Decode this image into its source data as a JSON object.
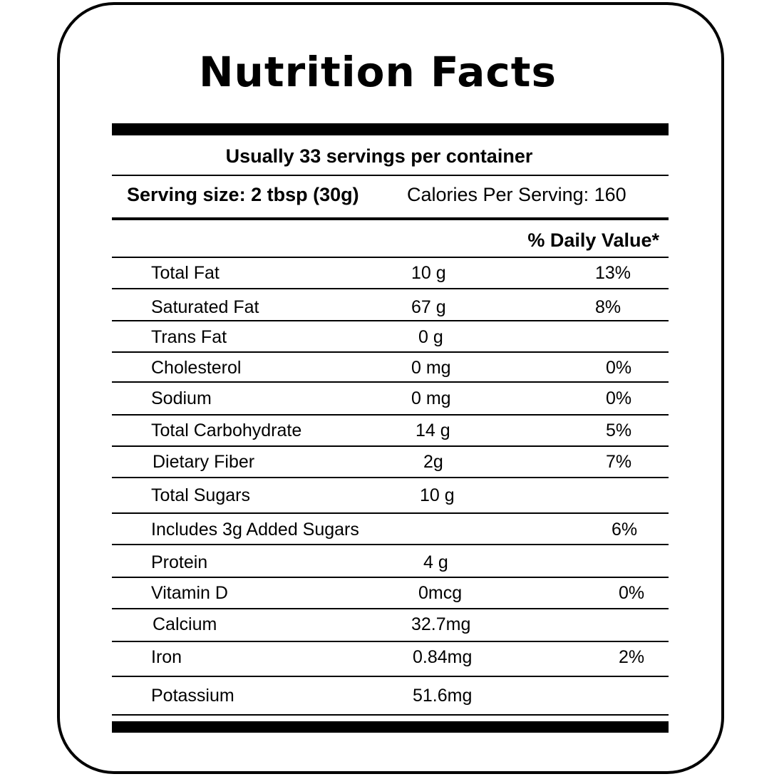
{
  "label": {
    "title": "Nutrition Facts",
    "servings_per_container": "Usually 33 servings per container",
    "serving_size": "Serving size: 2 tbsp (30g)",
    "calories": "Calories Per Serving: 160",
    "daily_value_header": "% Daily Value*",
    "nutrients": [
      {
        "name": "Total Fat",
        "amount": "10 g",
        "dv": "13%"
      },
      {
        "name": "Saturated Fat",
        "amount": "67 g",
        "dv": "8%"
      },
      {
        "name": "Trans Fat",
        "amount": "0 g",
        "dv": ""
      },
      {
        "name": "Cholesterol",
        "amount": "0 mg",
        "dv": "0%"
      },
      {
        "name": "Sodium",
        "amount": "0 mg",
        "dv": "0%"
      },
      {
        "name": "Total Carbohydrate",
        "amount": "14 g",
        "dv": "5%"
      },
      {
        "name": "Dietary Fiber",
        "amount": "2g",
        "dv": "7%"
      },
      {
        "name": "Total Sugars",
        "amount": "10 g",
        "dv": ""
      },
      {
        "name": "Includes 3g Added Sugars",
        "amount": "",
        "dv": "6%"
      },
      {
        "name": "Protein",
        "amount": "4 g",
        "dv": ""
      },
      {
        "name": "Vitamin D",
        "amount": "0mcg",
        "dv": "0%"
      },
      {
        "name": "Calcium",
        "amount": "32.7mg",
        "dv": ""
      },
      {
        "name": "Iron",
        "amount": "0.84mg",
        "dv": "2%"
      },
      {
        "name": "Potassium",
        "amount": "51.6mg",
        "dv": ""
      }
    ]
  }
}
